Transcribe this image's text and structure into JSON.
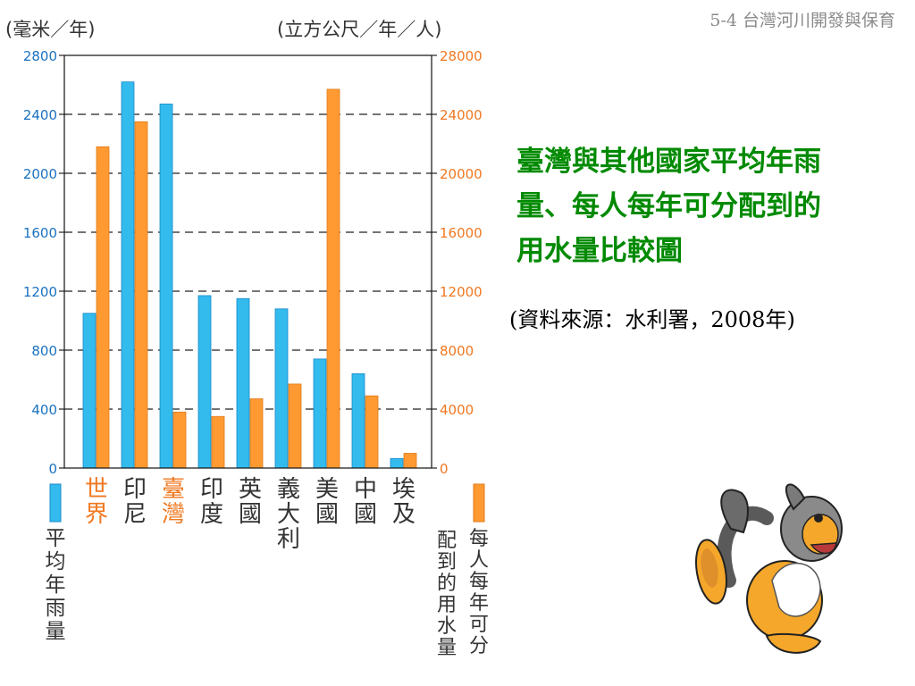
{
  "header": {
    "text": "5-4 台灣河川開發與保育"
  },
  "title": {
    "line1": "臺灣與其他國家平均年雨",
    "line2": "量、每人每年可分配到的",
    "line3": "用水量比較圖"
  },
  "source": {
    "text": "(資料來源：水利署，2008年)"
  },
  "chart_data": {
    "type": "bar",
    "categories": [
      "世界",
      "印尼",
      "臺灣",
      "印度",
      "英國",
      "義大利",
      "美國",
      "中國",
      "埃及"
    ],
    "category_label_chars": [
      [
        "世",
        "界"
      ],
      [
        "印",
        "尼"
      ],
      [
        "臺",
        "灣"
      ],
      [
        "印",
        "度"
      ],
      [
        "英",
        "國"
      ],
      [
        "義",
        "大",
        "利"
      ],
      [
        "美",
        "國"
      ],
      [
        "中",
        "國"
      ],
      [
        "埃",
        "及"
      ]
    ],
    "highlight_categories": [
      "世界",
      "臺灣"
    ],
    "left_unit": "(毫米／年)",
    "right_unit": "(立方公尺／年／人)",
    "left_axis": {
      "ylim": [
        0,
        2800
      ],
      "ticks": [
        0,
        400,
        800,
        1200,
        1600,
        2000,
        2400,
        2800
      ]
    },
    "right_axis": {
      "ylim": [
        0,
        28000
      ],
      "ticks": [
        0,
        4000,
        8000,
        12000,
        16000,
        20000,
        24000,
        28000
      ]
    },
    "grid": true,
    "series": [
      {
        "name": "平均年雨量",
        "name_chars": [
          "平",
          "均",
          "年",
          "雨",
          "量"
        ],
        "axis": "left",
        "color": "#33bbee",
        "values": [
          1050,
          2620,
          2470,
          1170,
          1150,
          1080,
          740,
          640,
          65
        ]
      },
      {
        "name": "每人每年可分配到的用水量",
        "name_chars": [
          "每",
          "人",
          "每",
          "年",
          "可",
          "分"
        ],
        "name_chars_2": [
          "配",
          "到",
          "的",
          "用",
          "水",
          "量"
        ],
        "axis": "right",
        "color": "#ff9a33",
        "values": [
          21800,
          23500,
          3800,
          3500,
          4700,
          5700,
          25700,
          4900,
          1000
        ]
      }
    ]
  },
  "colors": {
    "title_green": "#008a00",
    "axis_blue": "#1a72c0",
    "axis_orange": "#f07820",
    "highlight_orange": "#f07820",
    "label_dark": "#333333"
  },
  "icons": {
    "mascot": "rabbit-mascot-icon"
  }
}
